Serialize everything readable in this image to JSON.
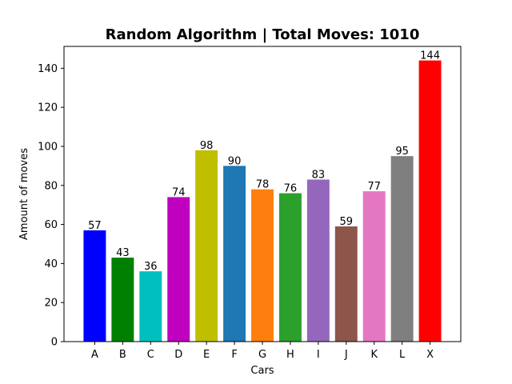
{
  "chart_data": {
    "type": "bar",
    "title": "Random Algorithm | Total Moves: 1010",
    "xlabel": "Cars",
    "ylabel": "Amount of moves",
    "categories": [
      "A",
      "B",
      "C",
      "D",
      "E",
      "F",
      "G",
      "H",
      "I",
      "J",
      "K",
      "L",
      "X"
    ],
    "values": [
      57,
      43,
      36,
      74,
      98,
      90,
      78,
      76,
      83,
      59,
      77,
      95,
      144
    ],
    "colors": [
      "#0000ff",
      "#008000",
      "#00bfbf",
      "#bf00bf",
      "#bfbf00",
      "#1f77b4",
      "#ff7f0e",
      "#2ca02c",
      "#9467bd",
      "#8c564b",
      "#e377c2",
      "#7f7f7f",
      "#ff0000"
    ],
    "ylim": [
      0,
      151.2
    ],
    "yticks": [
      0,
      20,
      40,
      60,
      80,
      100,
      120,
      140
    ],
    "grid": false,
    "legend": "none"
  }
}
